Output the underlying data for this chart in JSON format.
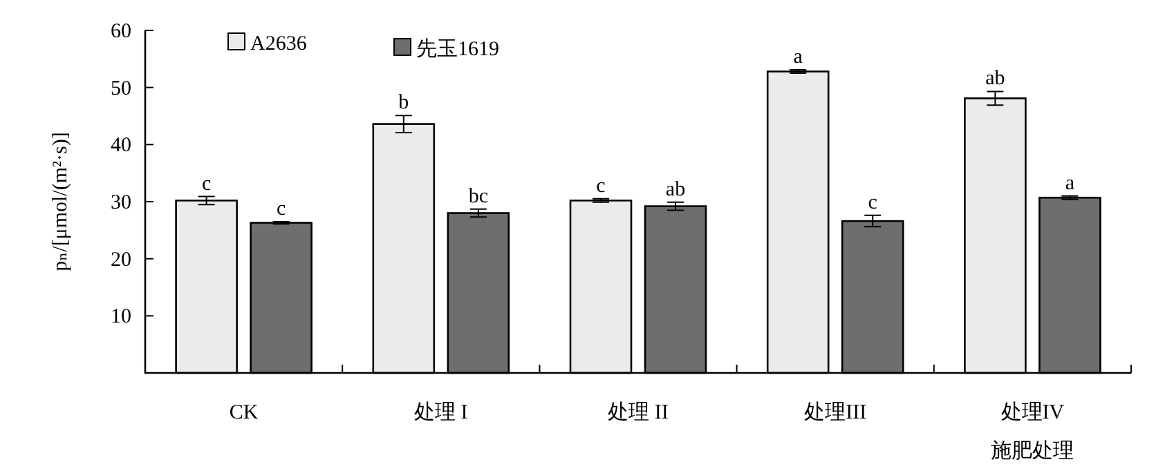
{
  "chart_data": {
    "type": "bar",
    "ylabel": "pₙ/[μmol/(m²·s)]",
    "xlabel": "施肥处理",
    "categories": [
      "CK",
      "处理 I",
      "处理 II",
      "处理III",
      "处理IV"
    ],
    "series": [
      {
        "name": "A2636",
        "color": "#ebebeb",
        "values": [
          30.2,
          43.6,
          30.2,
          52.8,
          48.1
        ],
        "errors": [
          0.7,
          1.5,
          0.3,
          0.3,
          1.2
        ],
        "value_labels": [
          "c",
          "b",
          "c",
          "a",
          "ab"
        ]
      },
      {
        "name": "先玉1619",
        "color": "#6e6e6e",
        "values": [
          26.3,
          28.0,
          29.2,
          26.6,
          30.7
        ],
        "errors": [
          0.2,
          0.7,
          0.7,
          1.0,
          0.3
        ],
        "value_labels": [
          "c",
          "bc",
          "ab",
          "c",
          "a"
        ]
      }
    ],
    "ylim": [
      0,
      60
    ],
    "yticks": [
      10,
      20,
      30,
      40,
      50,
      60
    ],
    "grid": false,
    "legend": "top"
  }
}
